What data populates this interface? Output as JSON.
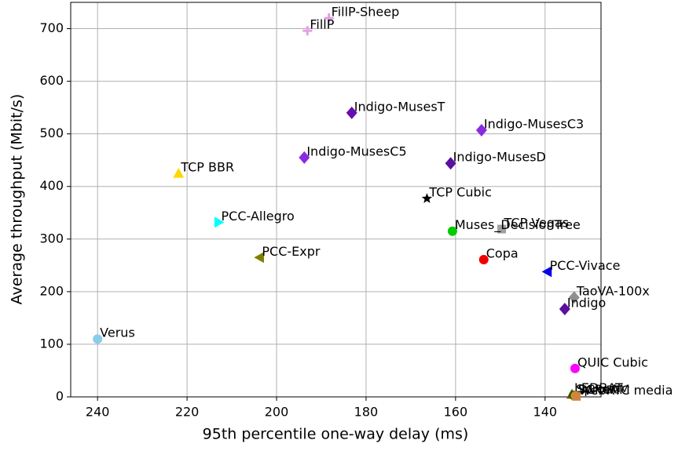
{
  "chart_data": {
    "type": "scatter",
    "x_label": "95th percentile one-way delay (ms)",
    "y_label": "Average throughput (Mbit/s)",
    "xlim": [
      246,
      127.5
    ],
    "xticks": [
      240,
      220,
      200,
      180,
      160,
      140
    ],
    "ylim": [
      0,
      750
    ],
    "yticks": [
      0,
      100,
      200,
      300,
      400,
      500,
      600,
      700
    ],
    "grid": true,
    "points": [
      {
        "label": "FillP-Sheep",
        "x": 188.3,
        "y": 720,
        "color": "#dda0dd",
        "marker": "plus"
      },
      {
        "label": "FillP",
        "x": 193.1,
        "y": 696,
        "color": "#e8a0e8",
        "marker": "plus"
      },
      {
        "label": "Indigo-MusesT",
        "x": 183.2,
        "y": 540,
        "color": "#6a0dad",
        "marker": "diamond"
      },
      {
        "label": "Indigo-MusesC3",
        "x": 154.2,
        "y": 507,
        "color": "#8a2be2",
        "marker": "diamond"
      },
      {
        "label": "Indigo-MusesC5",
        "x": 193.8,
        "y": 455,
        "color": "#8a2be2",
        "marker": "diamond"
      },
      {
        "label": "Indigo-MusesD",
        "x": 161.1,
        "y": 444,
        "color": "#5b0fa0",
        "marker": "diamond"
      },
      {
        "label": "TCP BBR",
        "x": 221.9,
        "y": 425,
        "color": "#ffd700",
        "marker": "triangle-up"
      },
      {
        "label": "TCP Cubic",
        "x": 166.4,
        "y": 377,
        "color": "#000000",
        "marker": "star"
      },
      {
        "label": "PCC-Allegro",
        "x": 212.9,
        "y": 332,
        "color": "#00ffff",
        "marker": "triangle-right"
      },
      {
        "label": "TCP Vegas",
        "x": 149.7,
        "y": 319,
        "color": "#a0a0a0",
        "marker": "square"
      },
      {
        "label": "Muses_DecisionTree",
        "x": 160.7,
        "y": 315,
        "color": "#00cc00",
        "marker": "circle"
      },
      {
        "label": "PCC-Expr",
        "x": 203.8,
        "y": 265,
        "color": "#808000",
        "marker": "triangle-left"
      },
      {
        "label": "Copa",
        "x": 153.7,
        "y": 261,
        "color": "#ee0000",
        "marker": "circle"
      },
      {
        "label": "PCC-Vivace",
        "x": 139.5,
        "y": 238,
        "color": "#0000ee",
        "marker": "triangle-left"
      },
      {
        "label": "TaoVA-100x",
        "x": 133.5,
        "y": 189,
        "color": "#909090",
        "marker": "diamond"
      },
      {
        "label": "Indigo",
        "x": 135.6,
        "y": 167,
        "color": "#5b0fa0",
        "marker": "diamond"
      },
      {
        "label": "Verus",
        "x": 240,
        "y": 110,
        "color": "#87ceeb",
        "marker": "circle"
      },
      {
        "label": "QUIC Cubic",
        "x": 133.3,
        "y": 54,
        "color": "#ff00ff",
        "marker": "circle"
      },
      {
        "label": "LEDBAT",
        "x": 134,
        "y": 5,
        "color": "#8b4513",
        "marker": "triangle-up"
      },
      {
        "label": "Sprout",
        "x": 133.6,
        "y": 3,
        "color": "#006400",
        "marker": "circle"
      },
      {
        "label": "SCReAM",
        "x": 133.2,
        "y": 2,
        "color": "#ff8c00",
        "marker": "circle"
      },
      {
        "label": "WebRTC media",
        "x": 133,
        "y": 1,
        "color": "#cd853f",
        "marker": "square"
      }
    ]
  }
}
